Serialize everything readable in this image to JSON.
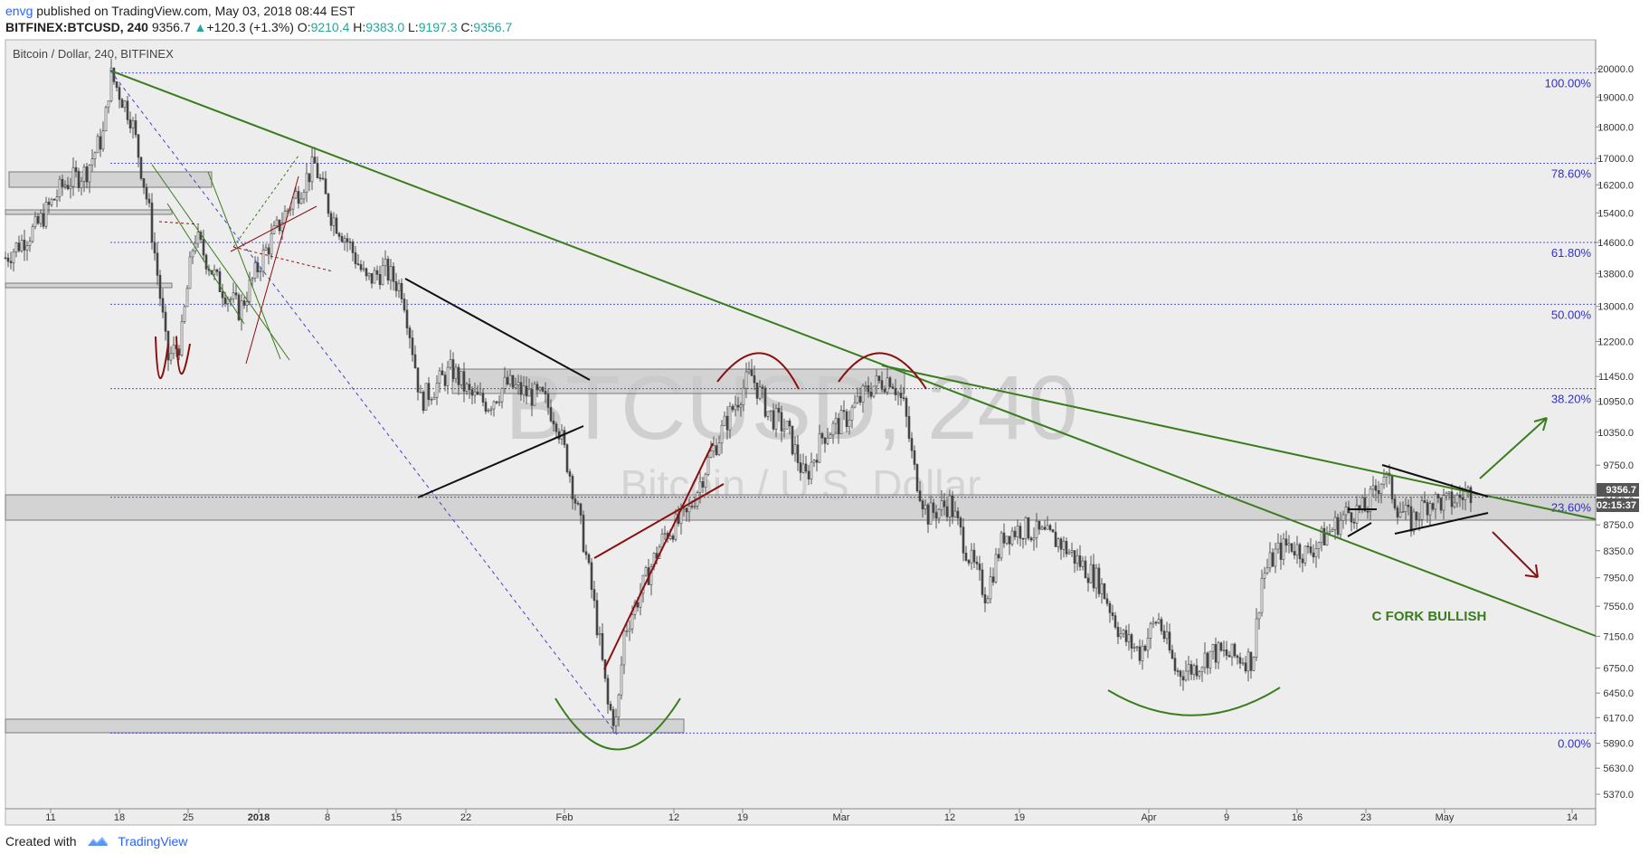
{
  "header": {
    "user": "envg",
    "published_text": " published on TradingView.com, May 03, 2018 08:44 EST",
    "symbol": "BITFINEX:BTCUSD, 240",
    "last": "9356.7",
    "change": "+120.3 (+1.3%)",
    "o_label": "O:",
    "o": "9210.4",
    "h_label": "H:",
    "h": "9383.0",
    "l_label": "L:",
    "l": "9197.3",
    "c_label": "C:",
    "c": "9356.7"
  },
  "pane_title": "Bitcoin / Dollar, 240, BITFINEX",
  "watermark": {
    "symbol": "BTCUSD, 240",
    "name": "Bitcoin / U.S. Dollar"
  },
  "footer": {
    "created_with": "Created with",
    "brand": "TradingView"
  },
  "chart_data": {
    "type": "candlestick",
    "y_scale": "log",
    "ylim": [
      5200,
      20600
    ],
    "y_ticks": [
      20000,
      19000,
      18000,
      17000,
      16200,
      15400,
      14600,
      13800,
      13000,
      12200,
      11450,
      10950,
      10350,
      9750,
      9150,
      8750,
      8350,
      7950,
      7550,
      7150,
      6750,
      6450,
      6170,
      5890,
      5630,
      5370
    ],
    "y_tick_labels": [
      "20000.0",
      "19000.0",
      "18000.0",
      "17000.0",
      "16200.0",
      "15400.0",
      "14600.0",
      "13800.0",
      "13000.0",
      "12200.0",
      "11450.0",
      "10950.0",
      "10350.0",
      "9750.0",
      "9150.0",
      "8750.0",
      "8350.0",
      "7950.0",
      "7550.0",
      "7150.0",
      "6750.0",
      "6450.0",
      "6170.0",
      "5890.0",
      "5630.0",
      "5370.0"
    ],
    "x_ticks": [
      "11",
      "18",
      "25",
      "2018",
      "8",
      "15",
      "22",
      "Feb",
      "12",
      "19",
      "Mar",
      "12",
      "19",
      "Apr",
      "9",
      "16",
      "23",
      "May",
      "14"
    ],
    "fib_levels": [
      {
        "label": "100.00%",
        "price": 19850
      },
      {
        "label": "78.60%",
        "price": 16850
      },
      {
        "label": "61.80%",
        "price": 14600
      },
      {
        "label": "50.00%",
        "price": 13050
      },
      {
        "label": "38.20%",
        "price": 11200
      },
      {
        "label": "23.60%",
        "price": 9200
      },
      {
        "label": "0.00%",
        "price": 6000
      }
    ],
    "last_price": "9356.7",
    "countdown": "02:15:37",
    "annotation": "C FORK BULLISH",
    "colors": {
      "accent_green": "#3a7d1e",
      "accent_red": "#8b0f0f",
      "fib_blue": "#3030d0",
      "candle": "#333333",
      "tag_bg": "#555555"
    }
  }
}
